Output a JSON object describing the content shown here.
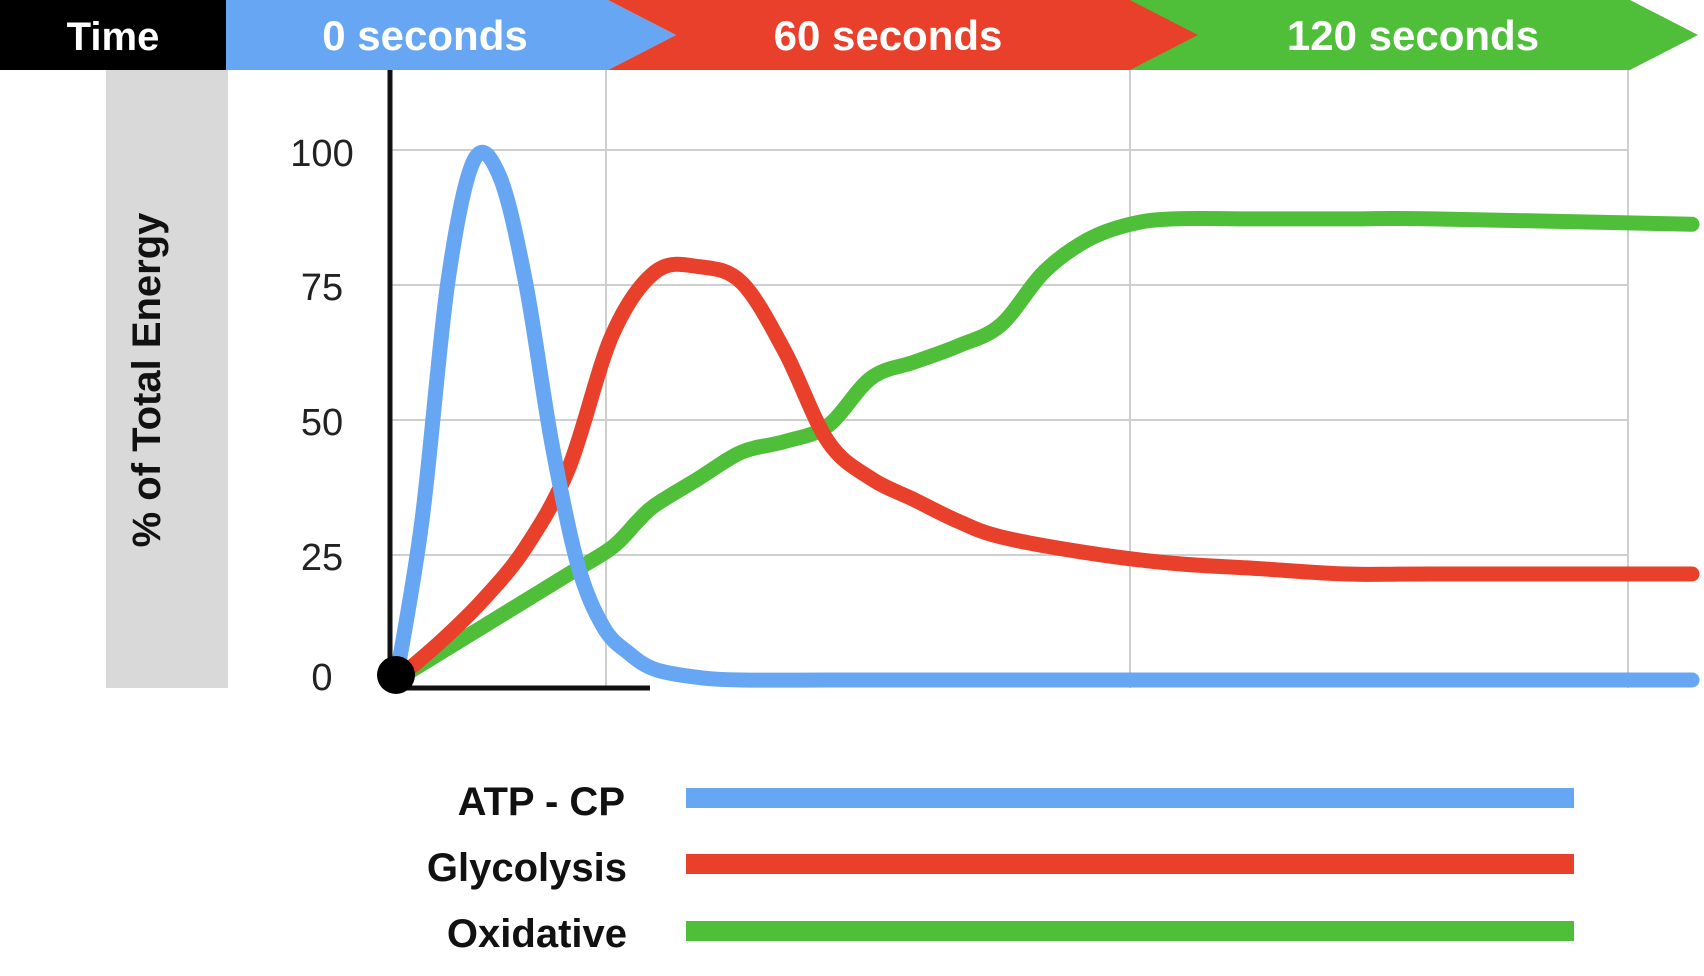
{
  "chart_data": {
    "type": "line",
    "title": "",
    "time_bar": {
      "label": "Time",
      "segments": [
        {
          "label": "0 seconds",
          "color": "#66a6f2"
        },
        {
          "label": "60 seconds",
          "color": "#e8402a"
        },
        {
          "label": "120 seconds",
          "color": "#4fbf3a"
        }
      ]
    },
    "ylabel": "% of Total Energy",
    "xlabel": "",
    "xlim": [
      0,
      150
    ],
    "ylim": [
      0,
      100
    ],
    "yticks": [
      "0",
      "25",
      "50",
      "75",
      "100"
    ],
    "grid": true,
    "legend_position": "bottom",
    "series": [
      {
        "name": "ATP - CP",
        "color": "#66a6f2",
        "x": [
          0,
          3,
          6,
          9,
          12,
          15,
          18,
          21,
          24,
          27,
          30,
          35,
          40,
          50,
          60,
          80,
          100,
          120,
          150
        ],
        "y": [
          0,
          30,
          75,
          98,
          95,
          75,
          45,
          22,
          10,
          5,
          2,
          0.5,
          0,
          0,
          0,
          0,
          0,
          0,
          0
        ]
      },
      {
        "name": "Glycolysis",
        "color": "#e8402a",
        "x": [
          0,
          5,
          10,
          15,
          20,
          25,
          30,
          35,
          40,
          45,
          50,
          55,
          60,
          65,
          70,
          80,
          90,
          100,
          110,
          120,
          150
        ],
        "y": [
          0,
          7,
          15,
          25,
          40,
          65,
          77,
          78,
          75,
          62,
          45,
          38,
          34,
          30,
          27,
          24,
          22,
          21,
          20,
          20,
          20
        ]
      },
      {
        "name": "Oxidative",
        "color": "#4fbf3a",
        "x": [
          0,
          5,
          10,
          15,
          20,
          25,
          28,
          30,
          35,
          40,
          45,
          50,
          55,
          60,
          65,
          70,
          75,
          80,
          85,
          90,
          100,
          110,
          120,
          150
        ],
        "y": [
          0,
          5,
          10,
          15,
          20,
          25,
          30,
          33,
          38,
          43,
          45,
          48,
          57,
          60,
          63,
          67,
          77,
          83,
          86,
          87,
          87,
          87,
          87,
          86
        ]
      }
    ]
  }
}
